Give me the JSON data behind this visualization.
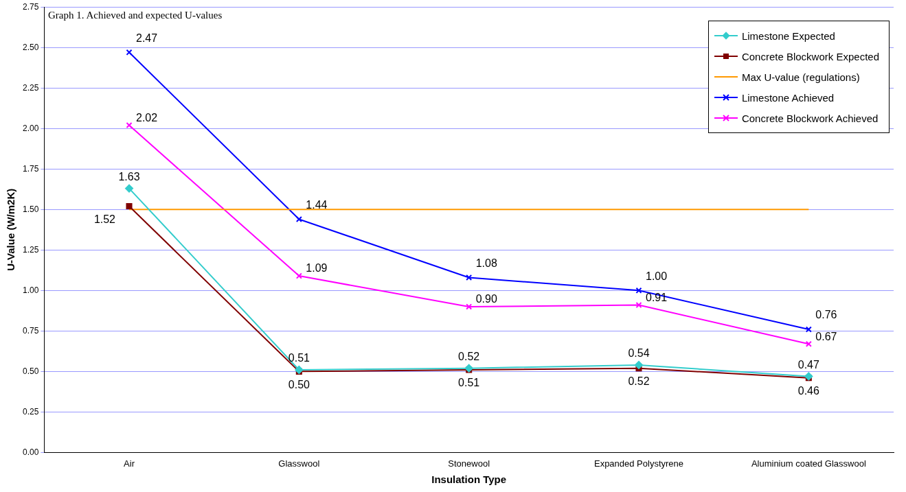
{
  "chart_data": {
    "type": "line",
    "title": "Graph 1. Achieved and expected U-values",
    "xlabel": "Insulation Type",
    "ylabel": "U-Value (W/m2K)",
    "categories": [
      "Air",
      "Glasswool",
      "Stonewool",
      "Expanded Polystyrene",
      "Aluminium coated Glasswool"
    ],
    "series": [
      {
        "name": "Limestone Expected",
        "color": "#33cccc",
        "marker": "diamond",
        "values": [
          1.63,
          0.51,
          0.52,
          0.54,
          0.47
        ],
        "value_labels": [
          "1.63",
          "0.51",
          "0.52",
          "0.54",
          "0.47"
        ]
      },
      {
        "name": "Concrete Blockwork Expected",
        "color": "#800000",
        "marker": "square",
        "values": [
          1.52,
          0.5,
          0.51,
          0.52,
          0.46
        ],
        "value_labels": [
          "1.52",
          "0.50",
          "0.51",
          "0.52",
          "0.46"
        ]
      },
      {
        "name": "Max U-value (regulations)",
        "color": "#ff9900",
        "marker": "none",
        "values": [
          1.5,
          1.5,
          1.5,
          1.5,
          1.5
        ]
      },
      {
        "name": "Limestone Achieved",
        "color": "#0000ff",
        "marker": "cross",
        "values": [
          2.47,
          1.44,
          1.08,
          1.0,
          0.76
        ],
        "value_labels": [
          "2.47",
          "1.44",
          "1.08",
          "1.00",
          "0.76"
        ]
      },
      {
        "name": "Concrete Blockwork Achieved",
        "color": "#ff00ff",
        "marker": "cross",
        "values": [
          2.02,
          1.09,
          0.9,
          0.91,
          0.67
        ],
        "value_labels": [
          "2.02",
          "1.09",
          "0.90",
          "0.91",
          "0.67"
        ]
      }
    ],
    "ylim": [
      0,
      2.75
    ],
    "yticks": [
      {
        "value": 0,
        "label": "0.00"
      },
      {
        "value": 0.25,
        "label": "0.25"
      },
      {
        "value": 0.5,
        "label": "0.50"
      },
      {
        "value": 0.75,
        "label": "0.75"
      },
      {
        "value": 1,
        "label": "1.00"
      },
      {
        "value": 1.25,
        "label": "1.25"
      },
      {
        "value": 1.5,
        "label": "1.50"
      },
      {
        "value": 1.75,
        "label": "1.75"
      },
      {
        "value": 2,
        "label": "2.00"
      },
      {
        "value": 2.25,
        "label": "2.25"
      },
      {
        "value": 2.5,
        "label": "2.50"
      },
      {
        "value": 2.75,
        "label": "2.75"
      }
    ],
    "grid": "y",
    "legend": "top right",
    "line_style": "solid"
  }
}
